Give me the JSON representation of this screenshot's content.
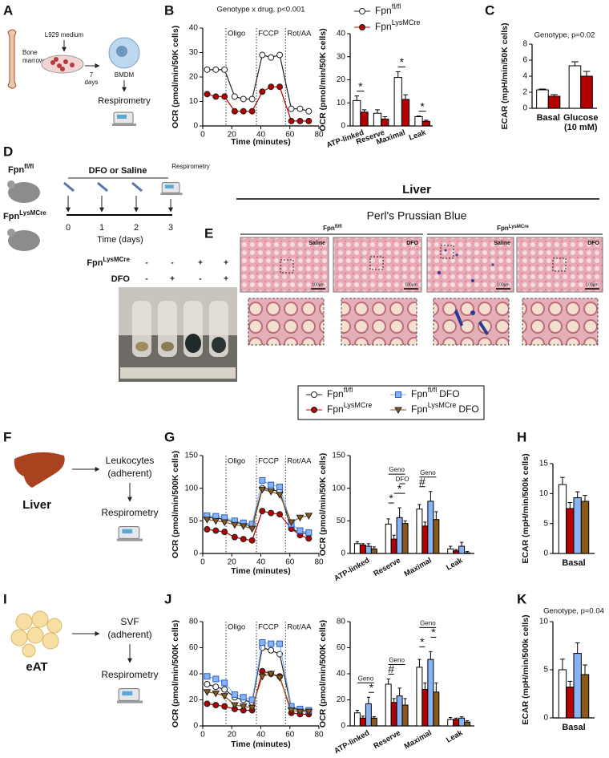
{
  "panel_labels": [
    "A",
    "B",
    "C",
    "D",
    "E",
    "F",
    "G",
    "H",
    "I",
    "J",
    "K"
  ],
  "panel_a": {
    "bone_marrow": [
      "Bone",
      "marrow"
    ],
    "medium": "L929 medium",
    "days": [
      "7",
      "days"
    ],
    "cell": "BMDM",
    "assay": "Respirometry"
  },
  "panel_d": {
    "mouse_1": {
      "base": "Fpn",
      "sup": "fl/fl"
    },
    "mouse_2": {
      "base": "Fpn",
      "sup": "LysMCre"
    },
    "treatment": "DFO or Saline",
    "assay": "Respirometry",
    "days": [
      "0",
      "1",
      "2",
      "3"
    ],
    "axis_label": "Time (days)",
    "table": {
      "rows": [
        {
          "label": {
            "base": "Fpn",
            "sup": "LysMCre"
          },
          "cells": [
            "-",
            "-",
            "+",
            "+"
          ]
        },
        {
          "label": "DFO",
          "cells": [
            "-",
            "+",
            "-",
            "+"
          ]
        }
      ]
    }
  },
  "panel_e": {
    "tissue": "Liver",
    "stain": "Perl's Prussian Blue",
    "groups": [
      {
        "label": {
          "base": "Fpn",
          "sup": "fl/fl"
        },
        "images": [
          {
            "label": "Saline",
            "scale_bar": "100µm"
          },
          {
            "label": "DFO",
            "scale_bar": "100µm"
          }
        ]
      },
      {
        "label": {
          "base": "Fpn",
          "sup": "LysMCre"
        },
        "images": [
          {
            "label": "Saline",
            "scale_bar": "100µm"
          },
          {
            "label": "DFO",
            "scale_bar": "100µm"
          }
        ]
      }
    ]
  },
  "panel_f": {
    "tissue": "Liver",
    "cells": [
      "Leukocytes",
      "(adherent)"
    ],
    "assay": "Respirometry"
  },
  "panel_i": {
    "tissue": "eAT",
    "cells": [
      "SVF",
      "(adherent)"
    ],
    "assay": "Respirometry"
  },
  "chart_data": [
    {
      "type": "line",
      "title": "Genotype x drug, p<0.001",
      "y_label": "OCR (pmol/min/50K cells)",
      "x_label": "Time (minutes)",
      "x": [
        3,
        9,
        15,
        22,
        28,
        34,
        41,
        47,
        53,
        61,
        67,
        73
      ],
      "xlim": [
        0,
        80
      ],
      "xticks": [
        0,
        20,
        40,
        60,
        80
      ],
      "ylim": [
        0,
        40
      ],
      "yticks": [
        0,
        10,
        20,
        30,
        40
      ],
      "injections": [
        {
          "label": "Oligo",
          "x": 16
        },
        {
          "label": "FCCP",
          "x": 37
        },
        {
          "label": "Rot/AA",
          "x": 57
        }
      ],
      "series": [
        {
          "color": "#ffffff",
          "marker": "circle",
          "values": [
            23,
            23,
            23,
            12,
            11,
            11,
            29,
            28,
            29,
            7,
            7,
            6
          ]
        },
        {
          "color": "#b30000",
          "marker": "circle",
          "values": [
            13,
            12,
            12,
            6,
            6,
            6,
            14,
            16,
            16,
            2,
            2,
            2
          ]
        }
      ]
    },
    {
      "type": "bar",
      "y_label": "OCR (pmol/min/50K cells)",
      "categories": [
        "ATP-linked",
        "Reserve",
        "Maximal",
        "Leak"
      ],
      "ylim": [
        0,
        40
      ],
      "yticks": [
        0,
        10,
        20,
        30,
        40
      ],
      "series": [
        {
          "name": "Fpn",
          "name_sup": "fl/fl",
          "color": "#ffffff",
          "marker": "circle",
          "values": [
            11,
            5.5,
            21,
            4
          ],
          "errors": [
            2,
            1.5,
            2.5,
            0.3
          ]
        },
        {
          "name": "Fpn",
          "name_sup": "LysMCre",
          "color": "#b30000",
          "marker": "circle",
          "values": [
            6,
            3,
            11.5,
            2
          ],
          "errors": [
            1,
            1,
            2,
            0.5
          ]
        }
      ],
      "annotations": [
        {
          "text": "*",
          "category": 0,
          "bars": [
            0,
            1
          ]
        },
        {
          "text": "*",
          "category": 2,
          "bars": [
            0,
            1
          ]
        },
        {
          "text": "*",
          "category": 3,
          "bars": [
            0,
            1
          ]
        }
      ]
    },
    {
      "type": "bar",
      "title": "Genotype, p=0.02",
      "y_label": "ECAR (mpH/min/50K cells)",
      "categories": [
        [
          "Basal"
        ],
        [
          "Glucose",
          "(10 mM)"
        ]
      ],
      "ylim": [
        0,
        8
      ],
      "yticks": [
        0,
        2,
        4,
        6,
        8
      ],
      "series": [
        {
          "color": "#ffffff",
          "values": [
            2.3,
            5.3
          ],
          "errors": [
            0.1,
            0.5
          ]
        },
        {
          "color": "#b30000",
          "values": [
            1.5,
            4.0
          ],
          "errors": [
            0.2,
            0.6
          ]
        }
      ]
    },
    {
      "type": "line",
      "y_label": "OCR (pmol/min/500K cells)",
      "x_label": "Time (minutes)",
      "x": [
        3,
        9,
        15,
        22,
        28,
        34,
        41,
        47,
        53,
        61,
        67,
        73
      ],
      "xlim": [
        0,
        80
      ],
      "xticks": [
        0,
        20,
        40,
        60,
        80
      ],
      "ylim": [
        0,
        150
      ],
      "yticks": [
        0,
        50,
        100,
        150
      ],
      "injections": [
        {
          "label": "Oligo",
          "x": 16
        },
        {
          "label": "FCCP",
          "x": 37
        },
        {
          "label": "Rot/AA",
          "x": 57
        }
      ],
      "series": [
        {
          "name": "Fpn",
          "name_sup": "fl/fl",
          "color": "#ffffff",
          "marker": "circle",
          "values": [
            55,
            55,
            52,
            48,
            45,
            42,
            100,
            98,
            95,
            38,
            32,
            30
          ]
        },
        {
          "name": "Fpn",
          "name_sup": "LysMCre",
          "color": "#b30000",
          "marker": "circle",
          "values": [
            37,
            35,
            33,
            25,
            22,
            20,
            65,
            62,
            60,
            38,
            28,
            23
          ]
        },
        {
          "name": "Fpn",
          "name_sup": "fl/fl",
          "name_suffix": "DFO",
          "color": "#86b4f4",
          "marker": "square",
          "values": [
            58,
            57,
            55,
            50,
            47,
            45,
            112,
            105,
            102,
            45,
            35,
            32
          ]
        },
        {
          "name": "Fpn",
          "name_sup": "LysMCre",
          "name_suffix": "DFO",
          "color": "#8a5a1c",
          "marker": "triangle",
          "values": [
            52,
            50,
            48,
            44,
            42,
            38,
            98,
            95,
            90,
            48,
            55,
            58
          ]
        }
      ]
    },
    {
      "type": "bar",
      "y_label": "OCR (pmol/min/50K cells)",
      "categories": [
        "ATP-linked",
        "Reserve",
        "Maximal",
        "Leak"
      ],
      "ylim": [
        0,
        150
      ],
      "yticks": [
        0,
        50,
        100,
        150
      ],
      "series": [
        {
          "color": "#ffffff",
          "values": [
            15,
            45,
            68,
            7
          ],
          "errors": [
            3,
            8,
            7,
            4
          ]
        },
        {
          "color": "#b30000",
          "values": [
            13,
            22,
            42,
            4
          ],
          "errors": [
            2,
            6,
            6,
            2
          ]
        },
        {
          "color": "#86b4f4",
          "values": [
            11,
            55,
            80,
            11
          ],
          "errors": [
            4,
            15,
            15,
            6
          ]
        },
        {
          "color": "#8a5a1c",
          "values": [
            7,
            46,
            52,
            1
          ],
          "errors": [
            3,
            4,
            12,
            2
          ]
        }
      ],
      "annotations": [
        {
          "text": "*",
          "category": 1,
          "bars": [
            0,
            1
          ]
        },
        {
          "text": "*",
          "category": 1,
          "bars": [
            1,
            3
          ]
        },
        {
          "text": "DFO",
          "category": 1,
          "bars": [
            2,
            3
          ]
        },
        {
          "text": "Geno",
          "category": 1,
          "bars": [
            0,
            3
          ]
        },
        {
          "text": "#",
          "category": 2,
          "bars": [
            0,
            1
          ]
        },
        {
          "text": "Geno",
          "category": 2,
          "bars": [
            0,
            3
          ]
        }
      ]
    },
    {
      "type": "bar",
      "y_label": "ECAR (mpH/min/500k cells)",
      "categories": [
        [
          "Basal"
        ]
      ],
      "ylim": [
        0,
        15
      ],
      "yticks": [
        0,
        5,
        10,
        15
      ],
      "series": [
        {
          "color": "#ffffff",
          "values": [
            11.5
          ],
          "errors": [
            1.2
          ]
        },
        {
          "color": "#b30000",
          "values": [
            7.5
          ],
          "errors": [
            1
          ]
        },
        {
          "color": "#86b4f4",
          "values": [
            9.3
          ],
          "errors": [
            1
          ]
        },
        {
          "color": "#8a5a1c",
          "values": [
            8.7
          ],
          "errors": [
            1
          ]
        }
      ]
    },
    {
      "type": "line",
      "y_label": "OCR (pmol/min/500K cells)",
      "x_label": "Time (minutes)",
      "x": [
        3,
        9,
        15,
        22,
        28,
        34,
        41,
        47,
        53,
        61,
        67,
        73
      ],
      "xlim": [
        0,
        80
      ],
      "xticks": [
        0,
        20,
        40,
        60,
        80
      ],
      "ylim": [
        0,
        80
      ],
      "yticks": [
        0,
        20,
        40,
        60,
        80
      ],
      "injections": [
        {
          "label": "Oligo",
          "x": 16
        },
        {
          "label": "FCCP",
          "x": 37
        },
        {
          "label": "Rot/AA",
          "x": 57
        }
      ],
      "series": [
        {
          "color": "#ffffff",
          "marker": "circle",
          "values": [
            32,
            30,
            28,
            22,
            20,
            18,
            60,
            58,
            55,
            14,
            12,
            12
          ]
        },
        {
          "color": "#b30000",
          "marker": "circle",
          "values": [
            17,
            16,
            15,
            13,
            12,
            12,
            42,
            40,
            38,
            10,
            9,
            9
          ]
        },
        {
          "color": "#86b4f4",
          "marker": "square",
          "values": [
            38,
            36,
            33,
            24,
            22,
            20,
            64,
            63,
            63,
            15,
            13,
            12
          ]
        },
        {
          "color": "#8a5a1c",
          "marker": "triangle",
          "values": [
            26,
            25,
            23,
            16,
            15,
            14,
            38,
            40,
            37,
            12,
            11,
            11
          ]
        }
      ]
    },
    {
      "type": "bar",
      "y_label": "OCR (pmol/min/500K cells)",
      "categories": [
        "ATP-linked",
        "Reserve",
        "Maximal",
        "Leak"
      ],
      "ylim": [
        0,
        80
      ],
      "yticks": [
        0,
        20,
        40,
        60,
        80
      ],
      "series": [
        {
          "color": "#ffffff",
          "values": [
            10,
            32,
            45,
            5
          ],
          "errors": [
            2,
            4,
            6,
            1.5
          ]
        },
        {
          "color": "#b30000",
          "values": [
            6,
            18,
            28,
            5
          ],
          "errors": [
            1.5,
            3,
            5,
            1
          ]
        },
        {
          "color": "#86b4f4",
          "values": [
            17,
            23,
            51,
            6
          ],
          "errors": [
            5,
            6,
            6,
            1
          ]
        },
        {
          "color": "#8a5a1c",
          "values": [
            6,
            16,
            26,
            3
          ],
          "errors": [
            1,
            5,
            7,
            1
          ]
        }
      ],
      "annotations": [
        {
          "text": "*",
          "category": 0,
          "bars": [
            2,
            3
          ]
        },
        {
          "text": "Geno",
          "category": 0,
          "bars": [
            0,
            3
          ]
        },
        {
          "text": "#",
          "category": 1,
          "bars": [
            0,
            1
          ]
        },
        {
          "text": "Geno",
          "category": 1,
          "bars": [
            0,
            3
          ]
        },
        {
          "text": "*",
          "category": 2,
          "bars": [
            0,
            1
          ]
        },
        {
          "text": "*",
          "category": 2,
          "bars": [
            2,
            3
          ]
        },
        {
          "text": "Geno",
          "category": 2,
          "bars": [
            0,
            3
          ]
        }
      ]
    },
    {
      "type": "bar",
      "title": "Genotype, p=0.04",
      "y_label": "ECAR (mpH/min/500k cells)",
      "categories": [
        [
          "Basal"
        ]
      ],
      "ylim": [
        0,
        10
      ],
      "yticks": [
        0,
        5,
        10
      ],
      "series": [
        {
          "color": "#ffffff",
          "values": [
            5
          ],
          "errors": [
            1.1
          ]
        },
        {
          "color": "#b30000",
          "values": [
            3.2
          ],
          "errors": [
            0.6
          ]
        },
        {
          "color": "#86b4f4",
          "values": [
            6.7
          ],
          "errors": [
            1.1
          ]
        },
        {
          "color": "#8a5a1c",
          "values": [
            4.5
          ],
          "errors": [
            1
          ]
        }
      ]
    }
  ]
}
